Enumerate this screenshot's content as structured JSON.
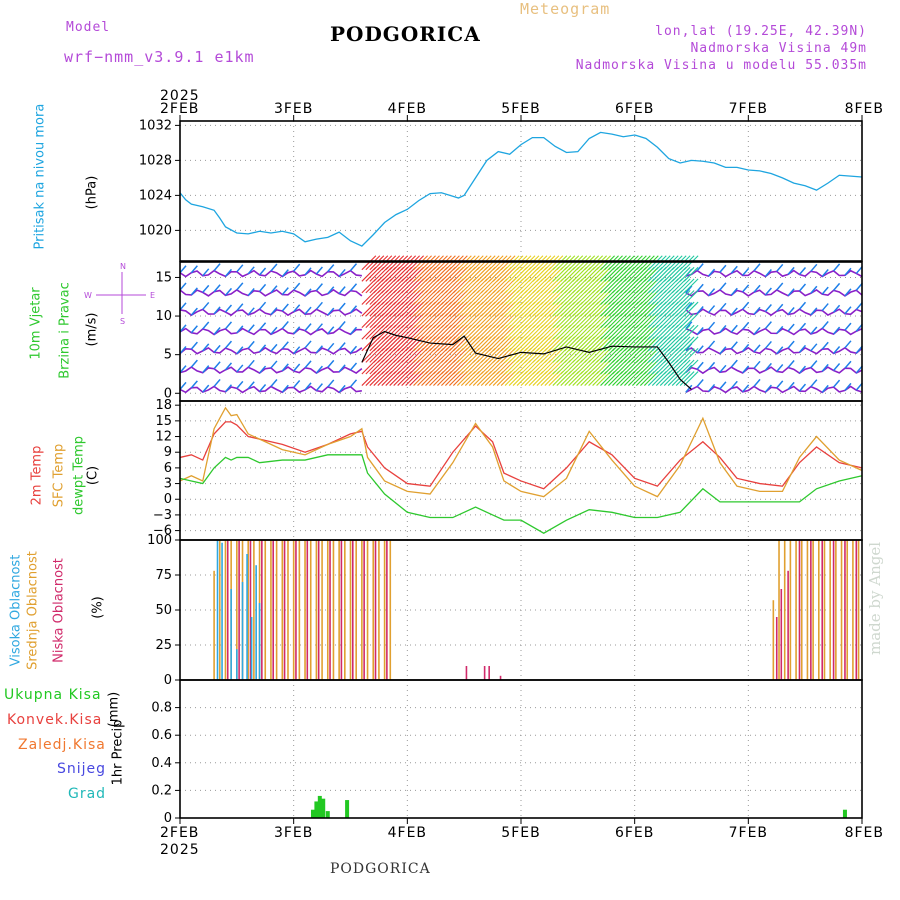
{
  "header": {
    "model_label": "Model",
    "model_name": "wrf−nmm_v3.9.1  e1km",
    "title": "PODGORICA",
    "meteogram": "Meteogram",
    "lonlat": "lon,lat (19.25E, 42.39N)",
    "elevation": "Nadmorska Visina 49m",
    "model_elevation": "Nadmorska Visina u modelu 55.035m"
  },
  "footer": {
    "location": "PODGORICA",
    "credit": "made by Angel"
  },
  "colors": {
    "pressure": "#1ea5e0",
    "temp2m": "#e8413e",
    "sfc": "#e0a030",
    "dew": "#2ec82e",
    "cloud_high": "#30a8e0",
    "cloud_mid": "#e0a030",
    "cloud_low": "#d02a6a",
    "precip_total": "#22c822",
    "precip_conv": "#e8413e",
    "precip_ice": "#f07830",
    "snow": "#4848e0",
    "grad": "#20b8b8",
    "purple": "#b44ad8"
  },
  "chart_data": [
    {
      "type": "line",
      "panel": "pressure",
      "title": "",
      "ylabel": "Pritisak na nivou mora",
      "unit": "(hPa)",
      "xlabel_top": "2025",
      "xticks": [
        "2FEB",
        "3FEB",
        "4FEB",
        "5FEB",
        "6FEB",
        "7FEB",
        "8FEB"
      ],
      "ylim": [
        1016.5,
        1032.5
      ],
      "yticks": [
        "1020",
        "1024",
        "1028",
        "1032"
      ],
      "x": [
        0,
        0.05,
        0.1,
        0.2,
        0.3,
        0.35,
        0.4,
        0.5,
        0.6,
        0.7,
        0.8,
        0.9,
        1.0,
        1.1,
        1.2,
        1.3,
        1.4,
        1.5,
        1.6,
        1.7,
        1.8,
        1.9,
        2.0,
        2.1,
        2.2,
        2.3,
        2.4,
        2.45,
        2.5,
        2.6,
        2.7,
        2.8,
        2.9,
        3.0,
        3.1,
        3.2,
        3.3,
        3.4,
        3.5,
        3.6,
        3.7,
        3.8,
        3.9,
        4.0,
        4.1,
        4.2,
        4.3,
        4.4,
        4.5,
        4.6,
        4.7,
        4.8,
        4.9,
        5.0,
        5.1,
        5.2,
        5.3,
        5.4,
        5.5,
        5.6,
        5.7,
        5.8,
        5.9,
        6.0
      ],
      "series": [
        {
          "values": [
            1024.3,
            1023.5,
            1023.0,
            1022.7,
            1022.3,
            1021.4,
            1020.4,
            1019.7,
            1019.6,
            1019.9,
            1019.7,
            1019.9,
            1019.6,
            1018.7,
            1019.0,
            1019.2,
            1019.8,
            1018.8,
            1018.2,
            1019.5,
            1020.9,
            1021.8,
            1022.4,
            1023.4,
            1024.2,
            1024.3,
            1023.9,
            1023.7,
            1024.0,
            1026.0,
            1028.0,
            1029.0,
            1028.7,
            1029.8,
            1030.6,
            1030.6,
            1029.6,
            1028.9,
            1029.0,
            1030.5,
            1031.2,
            1031.0,
            1030.7,
            1030.9,
            1030.5,
            1029.5,
            1028.2,
            1027.7,
            1028.0,
            1027.9,
            1027.7,
            1027.2,
            1027.2,
            1026.9,
            1026.8,
            1026.5,
            1026.0,
            1025.4,
            1025.1,
            1024.6,
            1025.4,
            1026.3,
            1026.2,
            1026.1
          ]
        }
      ]
    },
    {
      "type": "line",
      "panel": "wind",
      "title": "",
      "ylabel": "10m Vjetar",
      "ylabel2": "Brzina i Pravac",
      "unit": "(m/s)",
      "compass": [
        "N",
        "S",
        "W",
        "E"
      ],
      "ylim": [
        -1,
        17
      ],
      "yticks": [
        "0",
        "5",
        "10",
        "15"
      ],
      "x": [
        1.6,
        1.7,
        1.8,
        1.9,
        2.0,
        2.2,
        2.4,
        2.5,
        2.6,
        2.8,
        3.0,
        3.2,
        3.4,
        3.6,
        3.8,
        4.0,
        4.2,
        4.3,
        4.4,
        4.5
      ],
      "series": [
        {
          "values": [
            4,
            7.2,
            8,
            7.5,
            7.2,
            6.5,
            6.3,
            7.4,
            5.2,
            4.5,
            5.3,
            5.1,
            6.0,
            5.3,
            6.1,
            6.0,
            6.0,
            4.0,
            1.8,
            0.5
          ]
        }
      ]
    },
    {
      "type": "line",
      "panel": "temperature",
      "title": "",
      "ylabel": "2m Temp",
      "ylabel2": "SFC Temp",
      "ylabel3": "dewpt Temp",
      "unit": "(C)",
      "ylim": [
        -7.8,
        18.8
      ],
      "yticks": [
        "18",
        "15",
        "12",
        "9",
        "6",
        "3",
        "0",
        "−3",
        "−6"
      ],
      "x": [
        0,
        0.1,
        0.2,
        0.3,
        0.4,
        0.45,
        0.5,
        0.6,
        0.7,
        0.9,
        1.1,
        1.3,
        1.5,
        1.6,
        1.65,
        1.8,
        2.0,
        2.2,
        2.4,
        2.6,
        2.75,
        2.85,
        3.0,
        3.2,
        3.4,
        3.6,
        3.8,
        4.0,
        4.2,
        4.4,
        4.6,
        4.75,
        4.9,
        5.1,
        5.3,
        5.45,
        5.6,
        5.8,
        6.0
      ],
      "series": [
        {
          "name": "2m Temp",
          "values": [
            8,
            8.5,
            7.5,
            12.5,
            14.8,
            14.8,
            14.2,
            12,
            11.5,
            10.5,
            9,
            10.5,
            12.5,
            13,
            10,
            6,
            3,
            2.5,
            9,
            14,
            11,
            5,
            3.5,
            2,
            6,
            11,
            8.5,
            4,
            2.5,
            7.5,
            11,
            8,
            4,
            3,
            2.5,
            7,
            10,
            7,
            6
          ]
        },
        {
          "name": "SFC Temp",
          "values": [
            3.5,
            4.5,
            3.5,
            13.5,
            17.5,
            16,
            16.2,
            12.5,
            11.5,
            9.5,
            8.5,
            10.5,
            12,
            13.5,
            8,
            3.5,
            1.5,
            1,
            7,
            14.5,
            10,
            3.5,
            1.5,
            0.5,
            4,
            13,
            7.5,
            2.5,
            0.5,
            6.5,
            15.5,
            7,
            2.5,
            1.5,
            1.5,
            8,
            12,
            7.5,
            5.5
          ]
        },
        {
          "name": "dewpt Temp",
          "values": [
            4,
            3.5,
            3,
            6,
            8,
            7.5,
            8,
            8,
            7,
            7.5,
            7.5,
            8.5,
            8.5,
            8.5,
            5,
            1,
            -2.5,
            -3.5,
            -3.5,
            -1.5,
            -3,
            -4,
            -4,
            -6.5,
            -4,
            -2,
            -2.5,
            -3.5,
            -3.5,
            -2.5,
            2,
            -0.5,
            -0.5,
            -0.5,
            -0.5,
            -0.5,
            2,
            3.5,
            4.5
          ]
        }
      ]
    },
    {
      "type": "bar",
      "panel": "cloudiness",
      "title": "",
      "ylabel": "Visoka Oblacnost",
      "ylabel2": "Srednja Oblacnost",
      "ylabel3": "Niska Oblacnost",
      "unit": "(%)",
      "ylim": [
        0,
        100
      ],
      "yticks": [
        "0",
        "25",
        "50",
        "75",
        "100"
      ],
      "series": [
        {
          "name": "Visoka Oblacnost",
          "x": [
            0.33,
            0.37,
            0.45,
            0.5,
            0.55,
            0.59,
            0.63,
            0.67,
            0.7
          ],
          "values": [
            100,
            98,
            65,
            22,
            70,
            90,
            45,
            82,
            55
          ]
        },
        {
          "name": "Srednja Oblacnost",
          "x": [
            0.3,
            0.35,
            0.4,
            0.45,
            0.5,
            0.55,
            0.6,
            0.65,
            0.7,
            0.75,
            0.8,
            0.85,
            0.9,
            0.95,
            1.0,
            1.05,
            1.1,
            1.15,
            1.2,
            1.25,
            1.3,
            1.35,
            1.4,
            1.45,
            1.5,
            1.55,
            1.6,
            1.65,
            1.7,
            1.75,
            1.8,
            1.85,
            5.22,
            5.27,
            5.32,
            5.37,
            5.42,
            5.47,
            5.52,
            5.57,
            5.62,
            5.67,
            5.72,
            5.77,
            5.82,
            5.87,
            5.92,
            5.97
          ],
          "values": [
            78,
            100,
            100,
            100,
            100,
            100,
            100,
            100,
            100,
            100,
            100,
            100,
            100,
            100,
            100,
            100,
            100,
            100,
            100,
            100,
            100,
            100,
            100,
            100,
            100,
            100,
            100,
            100,
            100,
            100,
            100,
            100,
            57,
            100,
            100,
            100,
            100,
            100,
            100,
            100,
            100,
            100,
            100,
            100,
            100,
            100,
            100,
            100
          ]
        },
        {
          "name": "Niska Oblacnost",
          "x": [
            0.42,
            0.52,
            0.62,
            0.72,
            0.82,
            0.92,
            1.02,
            1.12,
            1.22,
            1.32,
            1.42,
            1.52,
            1.62,
            1.72,
            1.82,
            2.52,
            2.68,
            2.72,
            2.82,
            5.25,
            5.29,
            5.35,
            5.45,
            5.55,
            5.65,
            5.75,
            5.85,
            5.95
          ],
          "values": [
            100,
            100,
            100,
            100,
            100,
            100,
            100,
            100,
            100,
            100,
            100,
            100,
            100,
            100,
            100,
            10,
            10,
            10,
            3,
            45,
            65,
            78,
            100,
            100,
            100,
            100,
            100,
            100
          ]
        }
      ]
    },
    {
      "type": "bar",
      "panel": "precipitation",
      "title": "",
      "ylabel": "1hr Precip",
      "unit": "(mm)",
      "legend": [
        "Ukupna Kisa",
        "Konvek.Kisa",
        "Zaledj.Kisa",
        "Snijeg",
        "Grad"
      ],
      "xlabel_bottom": "2025",
      "xticks": [
        "2FEB",
        "3FEB",
        "4FEB",
        "5FEB",
        "6FEB",
        "7FEB",
        "8FEB"
      ],
      "ylim": [
        0,
        1.0
      ],
      "yticks": [
        "0",
        "0.2",
        "0.4",
        "0.6",
        "0.8"
      ],
      "series": [
        {
          "name": "Ukupna Kisa",
          "x": [
            1.17,
            1.2,
            1.23,
            1.26,
            1.3,
            1.47,
            5.85
          ],
          "values": [
            0.06,
            0.12,
            0.16,
            0.14,
            0.05,
            0.13,
            0.06
          ]
        }
      ]
    }
  ]
}
